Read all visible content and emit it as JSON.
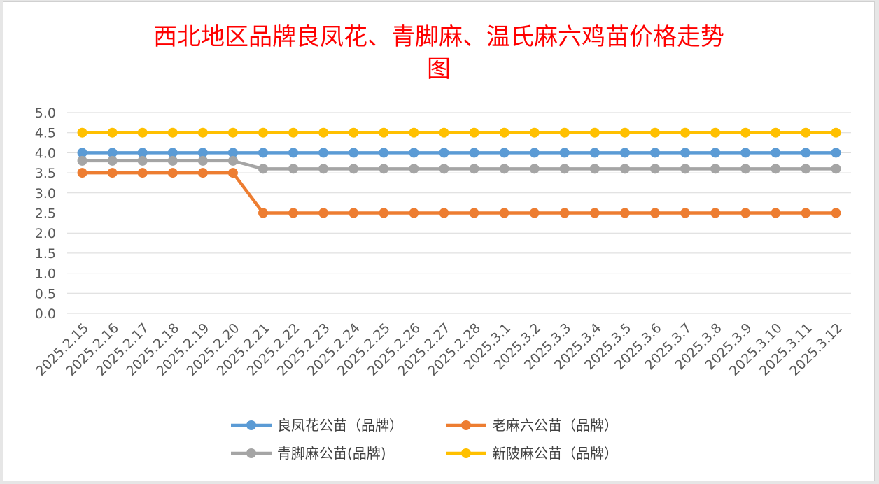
{
  "chart_data": {
    "type": "line",
    "title_lines": [
      "西北地区品牌良凤花、青脚麻、温氏麻六鸡苗价格走势",
      "图"
    ],
    "xlabel": "",
    "ylabel": "",
    "ylim": [
      0,
      5
    ],
    "yticks": [
      "0.0",
      "0.5",
      "1.0",
      "1.5",
      "2.0",
      "2.5",
      "3.0",
      "3.5",
      "4.0",
      "4.5",
      "5.0"
    ],
    "grid": true,
    "legend_position": "bottom",
    "categories": [
      "2025.2.15",
      "2025.2.16",
      "2025.2.17",
      "2025.2.18",
      "2025.2.19",
      "2025.2.20",
      "2025.2.21",
      "2025.2.22",
      "2025.2.23",
      "2025.2.24",
      "2025.2.25",
      "2025.2.26",
      "2025.2.27",
      "2025.2.28",
      "2025.3.1",
      "2025.3.2",
      "2025.3.3",
      "2025.3.4",
      "2025.3.5",
      "2025.3.6",
      "2025.3.7",
      "2025.3.8",
      "2025.3.9",
      "2025.3.10",
      "2025.3.11",
      "2025.3.12"
    ],
    "series": [
      {
        "name": "新陂麻公苗（品牌）",
        "color": "#ffc000",
        "values": [
          4.5,
          4.5,
          4.5,
          4.5,
          4.5,
          4.5,
          4.5,
          4.5,
          4.5,
          4.5,
          4.5,
          4.5,
          4.5,
          4.5,
          4.5,
          4.5,
          4.5,
          4.5,
          4.5,
          4.5,
          4.5,
          4.5,
          4.5,
          4.5,
          4.5,
          4.5
        ]
      },
      {
        "name": "良凤花公苗（品牌）",
        "color": "#5b9bd5",
        "values": [
          4.0,
          4.0,
          4.0,
          4.0,
          4.0,
          4.0,
          4.0,
          4.0,
          4.0,
          4.0,
          4.0,
          4.0,
          4.0,
          4.0,
          4.0,
          4.0,
          4.0,
          4.0,
          4.0,
          4.0,
          4.0,
          4.0,
          4.0,
          4.0,
          4.0,
          4.0
        ]
      },
      {
        "name": "青脚麻公苗(品牌)",
        "color": "#a5a5a5",
        "values": [
          3.8,
          3.8,
          3.8,
          3.8,
          3.8,
          3.8,
          3.6,
          3.6,
          3.6,
          3.6,
          3.6,
          3.6,
          3.6,
          3.6,
          3.6,
          3.6,
          3.6,
          3.6,
          3.6,
          3.6,
          3.6,
          3.6,
          3.6,
          3.6,
          3.6,
          3.6
        ]
      },
      {
        "name": "老麻六公苗（品牌）",
        "color": "#ed7d31",
        "values": [
          3.5,
          3.5,
          3.5,
          3.5,
          3.5,
          3.5,
          2.5,
          2.5,
          2.5,
          2.5,
          2.5,
          2.5,
          2.5,
          2.5,
          2.5,
          2.5,
          2.5,
          2.5,
          2.5,
          2.5,
          2.5,
          2.5,
          2.5,
          2.5,
          2.5,
          2.5
        ]
      }
    ],
    "legend_order": [
      1,
      3,
      2,
      0
    ]
  }
}
